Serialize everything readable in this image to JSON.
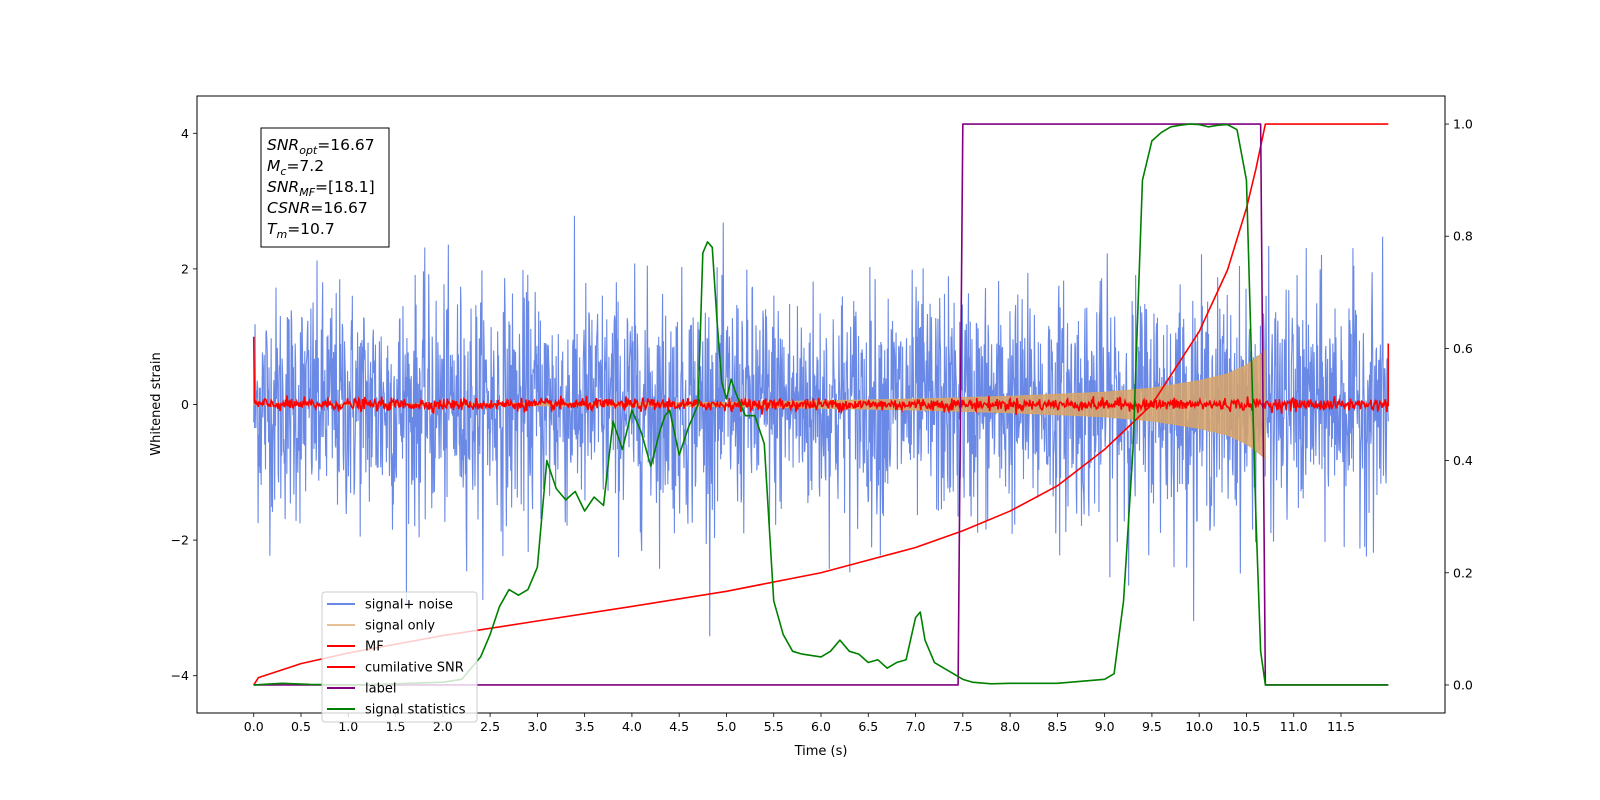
{
  "chart_data": {
    "type": "line",
    "xlabel": "Time (s)",
    "ylabel": "Whitened strain",
    "xlim": [
      -0.6,
      12.6
    ],
    "ylim": [
      -4.55,
      4.55
    ],
    "y2lim": [
      -0.05,
      1.05
    ],
    "grid": false,
    "legend_position": "lower-left",
    "x_ticks": [
      "0.0",
      "0.5",
      "1.0",
      "1.5",
      "2.0",
      "2.5",
      "3.0",
      "3.5",
      "4.0",
      "4.5",
      "5.0",
      "5.5",
      "6.0",
      "6.5",
      "7.0",
      "7.5",
      "8.0",
      "8.5",
      "9.0",
      "9.5",
      "10.0",
      "10.5",
      "11.0",
      "11.5"
    ],
    "y_ticks": [
      "−4",
      "−2",
      "0",
      "2",
      "4"
    ],
    "y2_ticks": [
      "0.0",
      "0.2",
      "0.4",
      "0.6",
      "0.8",
      "1.0"
    ],
    "annotation": {
      "lines": [
        {
          "base": "SNR",
          "sub": "opt",
          "value": "=16.67"
        },
        {
          "base": "M",
          "sub": "c",
          "value": "=7.2"
        },
        {
          "base": "SNR",
          "sub": "MF",
          "value": "=[18.1]"
        },
        {
          "base": "CSNR",
          "sub": "",
          "value": "=16.67"
        },
        {
          "base": "T",
          "sub": "m",
          "value": "=10.7"
        }
      ]
    },
    "series": [
      {
        "name": "signal+ noise",
        "color": "#6a89e6",
        "axis": "left",
        "kind": "noise",
        "x_range": [
          0.0,
          12.0
        ],
        "amplitude_std": 0.85
      },
      {
        "name": "signal only",
        "color": "#d9a566",
        "axis": "left",
        "kind": "chirp-envelope",
        "x_range": [
          0.0,
          10.7
        ],
        "envelope": {
          "x": [
            0.0,
            5.0,
            7.0,
            8.0,
            9.0,
            9.5,
            10.0,
            10.3,
            10.5,
            10.6,
            10.7
          ],
          "y": [
            0.0,
            0.03,
            0.08,
            0.12,
            0.18,
            0.24,
            0.35,
            0.45,
            0.58,
            0.68,
            0.8
          ]
        }
      },
      {
        "name": "MF",
        "color": "#ff0000",
        "axis": "left",
        "kind": "near-zero",
        "x_range": [
          0.0,
          12.0
        ],
        "start_value": 1.0,
        "end_value": 0.9
      },
      {
        "name": "cumilative SNR",
        "color": "#ff0000",
        "axis": "right",
        "x": [
          0.0,
          0.05,
          0.5,
          1.0,
          2.0,
          3.0,
          4.0,
          5.0,
          6.0,
          7.0,
          7.5,
          8.0,
          8.5,
          9.0,
          9.5,
          10.0,
          10.3,
          10.5,
          10.6,
          10.7,
          12.0
        ],
        "y": [
          0.0,
          0.013,
          0.038,
          0.057,
          0.088,
          0.114,
          0.14,
          0.167,
          0.2,
          0.245,
          0.275,
          0.31,
          0.355,
          0.42,
          0.5,
          0.63,
          0.74,
          0.85,
          0.92,
          1.0,
          1.0
        ]
      },
      {
        "name": "label",
        "color": "#800080",
        "axis": "right",
        "x": [
          0.0,
          7.45,
          7.5,
          10.65,
          10.7,
          11.0,
          12.0
        ],
        "y": [
          0.0,
          0.0,
          1.0,
          1.0,
          0.0,
          0.0,
          0.0
        ]
      },
      {
        "name": "signal statistics",
        "color": "#008000",
        "axis": "right",
        "x": [
          0.0,
          0.3,
          0.6,
          1.0,
          1.5,
          2.0,
          2.2,
          2.3,
          2.4,
          2.5,
          2.6,
          2.7,
          2.8,
          2.9,
          2.95,
          3.0,
          3.1,
          3.2,
          3.3,
          3.4,
          3.5,
          3.6,
          3.7,
          3.8,
          3.9,
          4.0,
          4.1,
          4.2,
          4.3,
          4.35,
          4.4,
          4.5,
          4.6,
          4.7,
          4.75,
          4.8,
          4.85,
          4.9,
          4.95,
          5.0,
          5.05,
          5.1,
          5.2,
          5.3,
          5.4,
          5.5,
          5.6,
          5.7,
          5.8,
          6.0,
          6.1,
          6.2,
          6.3,
          6.4,
          6.5,
          6.6,
          6.7,
          6.8,
          6.9,
          7.0,
          7.05,
          7.1,
          7.2,
          7.3,
          7.4,
          7.5,
          7.6,
          7.8,
          8.0,
          8.5,
          9.0,
          9.1,
          9.2,
          9.3,
          9.4,
          9.5,
          9.6,
          9.7,
          9.8,
          9.9,
          10.0,
          10.1,
          10.2,
          10.3,
          10.4,
          10.5,
          10.55,
          10.6,
          10.65,
          10.7,
          11.0,
          12.0
        ],
        "y": [
          0.0,
          0.003,
          0.001,
          0.0,
          0.002,
          0.005,
          0.01,
          0.03,
          0.05,
          0.09,
          0.14,
          0.17,
          0.16,
          0.17,
          0.19,
          0.21,
          0.4,
          0.35,
          0.33,
          0.345,
          0.31,
          0.335,
          0.32,
          0.47,
          0.42,
          0.49,
          0.45,
          0.39,
          0.455,
          0.48,
          0.49,
          0.41,
          0.46,
          0.5,
          0.77,
          0.79,
          0.78,
          0.65,
          0.54,
          0.51,
          0.545,
          0.52,
          0.48,
          0.48,
          0.43,
          0.15,
          0.09,
          0.06,
          0.055,
          0.05,
          0.06,
          0.08,
          0.06,
          0.055,
          0.04,
          0.045,
          0.03,
          0.04,
          0.045,
          0.12,
          0.13,
          0.08,
          0.04,
          0.03,
          0.02,
          0.01,
          0.005,
          0.002,
          0.003,
          0.003,
          0.01,
          0.02,
          0.15,
          0.42,
          0.9,
          0.97,
          0.985,
          0.995,
          0.998,
          1.0,
          0.999,
          0.995,
          0.998,
          0.999,
          0.99,
          0.9,
          0.6,
          0.3,
          0.06,
          0.0,
          0.0,
          0.0
        ]
      }
    ]
  }
}
